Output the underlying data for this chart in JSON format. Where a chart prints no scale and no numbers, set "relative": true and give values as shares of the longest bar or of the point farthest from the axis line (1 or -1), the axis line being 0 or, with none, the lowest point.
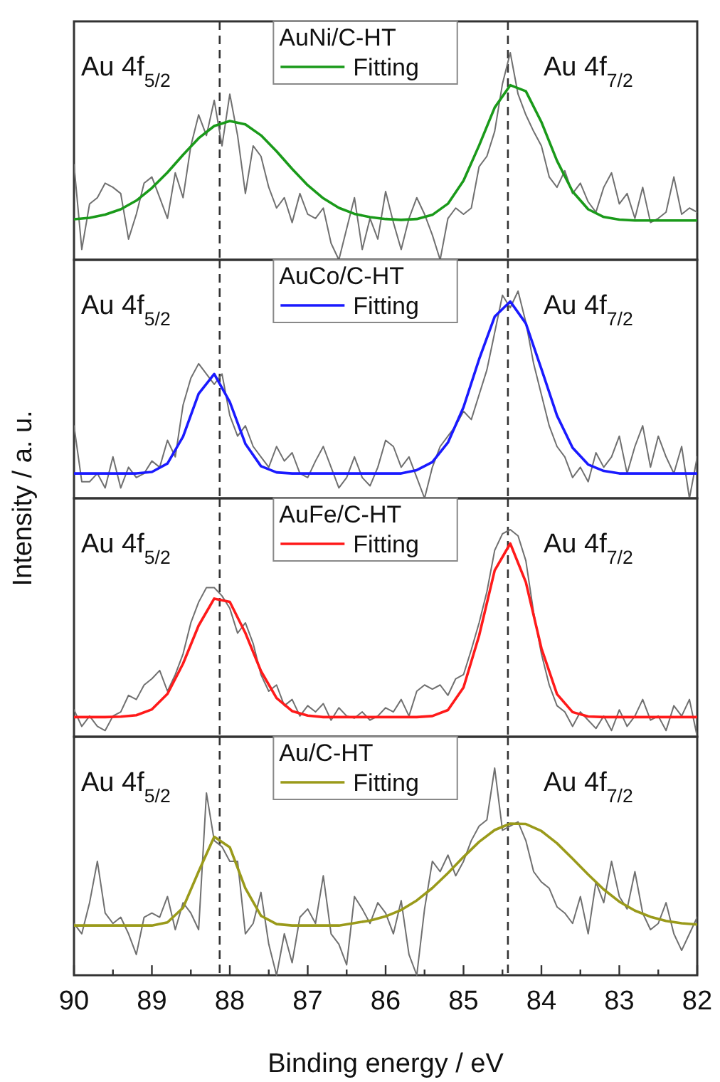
{
  "chart_data": [
    {
      "type": "line",
      "relative": true,
      "ylabel": "Intensity / a. u.",
      "legend_title": "AuNi/C-HT",
      "legend": "top",
      "tick_labels": false,
      "xlim": [
        90,
        82
      ],
      "annotations": [
        "Au 4f$_{5/2}$",
        "Au 4f$_{7/2}$"
      ],
      "ref_lines": [
        {
          "axis": "x",
          "value": 88.13,
          "color": "#333333",
          "line_style": "dashed"
        },
        {
          "axis": "x",
          "value": 84.43,
          "color": "#333333",
          "line_style": "dashed"
        }
      ],
      "x": [
        90,
        89.9,
        89.8,
        89.7,
        89.6,
        89.5,
        89.4,
        89.3,
        89.2,
        89.1,
        89,
        88.9,
        88.8,
        88.7,
        88.6,
        88.5,
        88.4,
        88.3,
        88.2,
        88.1,
        88,
        87.9,
        87.8,
        87.7,
        87.6,
        87.5,
        87.4,
        87.3,
        87.2,
        87.1,
        87,
        86.9,
        86.8,
        86.7,
        86.6,
        86.5,
        86.4,
        86.3,
        86.2,
        86.1,
        86,
        85.9,
        85.8,
        85.7,
        85.6,
        85.5,
        85.4,
        85.3,
        85.2,
        85.1,
        85,
        84.9,
        84.8,
        84.7,
        84.6,
        84.5,
        84.4,
        84.3,
        84.2,
        84.1,
        84,
        83.9,
        83.8,
        83.7,
        83.6,
        83.5,
        83.4,
        83.3,
        83.2,
        83.1,
        83,
        82.9,
        82.8,
        82.7,
        82.6,
        82.5,
        82.4,
        82.3,
        82.2,
        82.1,
        82
      ],
      "series": [
        {
          "color": "#707070",
          "values": [
            0.46,
            0.05,
            0.27,
            0.3,
            0.37,
            0.35,
            0.32,
            0.1,
            0.22,
            0.37,
            0.4,
            0.3,
            0.2,
            0.42,
            0.3,
            0.55,
            0.7,
            0.6,
            0.77,
            0.55,
            0.8,
            0.6,
            0.32,
            0.55,
            0.5,
            0.35,
            0.25,
            0.3,
            0.18,
            0.32,
            0.22,
            0.2,
            0.25,
            0.08,
            0.0,
            0.15,
            0.3,
            0.05,
            0.2,
            0.1,
            0.33,
            0.18,
            0.05,
            0.2,
            0.3,
            0.22,
            0.12,
            0.0,
            0.2,
            0.25,
            0.22,
            0.25,
            0.45,
            0.5,
            0.62,
            0.85,
            1.0,
            0.8,
            0.7,
            0.62,
            0.55,
            0.4,
            0.35,
            0.43,
            0.32,
            0.37,
            0.28,
            0.23,
            0.35,
            0.42,
            0.27,
            0.32,
            0.2,
            0.35,
            0.18,
            0.2,
            0.23,
            0.4,
            0.22,
            0.25,
            0.23
          ]
        },
        {
          "name": "Fitting",
          "color": "#1a9a1a",
          "x": [
            90,
            89.8,
            89.6,
            89.4,
            89.2,
            89,
            88.8,
            88.6,
            88.4,
            88.2,
            88,
            87.8,
            87.6,
            87.4,
            87.2,
            87,
            86.8,
            86.6,
            86.4,
            86.2,
            86,
            85.8,
            85.6,
            85.4,
            85.2,
            85,
            84.8,
            84.6,
            84.4,
            84.2,
            84,
            83.8,
            83.6,
            83.4,
            83.2,
            83,
            82.8,
            82.6,
            82.4,
            82.2,
            82
          ],
          "values": [
            0.196,
            0.203,
            0.218,
            0.244,
            0.286,
            0.347,
            0.422,
            0.507,
            0.587,
            0.646,
            0.67,
            0.654,
            0.601,
            0.524,
            0.439,
            0.36,
            0.297,
            0.251,
            0.222,
            0.206,
            0.197,
            0.193,
            0.197,
            0.217,
            0.271,
            0.382,
            0.552,
            0.735,
            0.843,
            0.814,
            0.665,
            0.478,
            0.33,
            0.244,
            0.207,
            0.194,
            0.19,
            0.19,
            0.19,
            0.19,
            0.19
          ]
        }
      ]
    },
    {
      "type": "line",
      "relative": true,
      "legend_title": "AuCo/C-HT",
      "legend": "top",
      "tick_labels": false,
      "xlim": [
        90,
        82
      ],
      "annotations": [
        "Au 4f$_{5/2}$",
        "Au 4f$_{7/2}$"
      ],
      "ref_lines": [
        {
          "axis": "x",
          "value": 88.13,
          "color": "#333333",
          "line_style": "dashed"
        },
        {
          "axis": "x",
          "value": 84.43,
          "color": "#333333",
          "line_style": "dashed"
        }
      ],
      "x": [
        90,
        89.9,
        89.8,
        89.7,
        89.6,
        89.5,
        89.4,
        89.3,
        89.2,
        89.1,
        89,
        88.9,
        88.8,
        88.7,
        88.6,
        88.5,
        88.4,
        88.3,
        88.2,
        88.1,
        88,
        87.9,
        87.8,
        87.7,
        87.6,
        87.5,
        87.4,
        87.3,
        87.2,
        87.1,
        87,
        86.9,
        86.8,
        86.7,
        86.6,
        86.5,
        86.4,
        86.3,
        86.2,
        86.1,
        86,
        85.9,
        85.8,
        85.7,
        85.6,
        85.5,
        85.4,
        85.3,
        85.2,
        85.1,
        85,
        84.9,
        84.8,
        84.7,
        84.6,
        84.5,
        84.4,
        84.3,
        84.2,
        84.1,
        84,
        83.9,
        83.8,
        83.7,
        83.6,
        83.5,
        83.4,
        83.3,
        83.2,
        83.1,
        83,
        82.9,
        82.8,
        82.7,
        82.6,
        82.5,
        82.4,
        82.3,
        82.2,
        82.1,
        82
      ],
      "series": [
        {
          "color": "#707070",
          "values": [
            0.35,
            0.08,
            0.08,
            0.12,
            0.05,
            0.2,
            0.05,
            0.15,
            0.1,
            0.12,
            0.18,
            0.15,
            0.28,
            0.2,
            0.45,
            0.58,
            0.65,
            0.6,
            0.55,
            0.6,
            0.4,
            0.3,
            0.35,
            0.25,
            0.2,
            0.15,
            0.25,
            0.18,
            0.22,
            0.12,
            0.1,
            0.18,
            0.25,
            0.15,
            0.05,
            0.1,
            0.2,
            0.1,
            0.06,
            0.15,
            0.28,
            0.25,
            0.15,
            0.2,
            0.1,
            0.0,
            0.15,
            0.25,
            0.3,
            0.35,
            0.42,
            0.38,
            0.5,
            0.62,
            0.8,
            0.98,
            0.92,
            1.0,
            0.85,
            0.65,
            0.5,
            0.35,
            0.25,
            0.2,
            0.1,
            0.15,
            0.08,
            0.22,
            0.15,
            0.2,
            0.3,
            0.12,
            0.25,
            0.35,
            0.15,
            0.3,
            0.2,
            0.12,
            0.25,
            0.0,
            0.2
          ]
        },
        {
          "name": "Fitting",
          "color": "#1a1aff",
          "x": [
            90,
            89.8,
            89.6,
            89.4,
            89.2,
            89,
            88.8,
            88.6,
            88.4,
            88.2,
            88,
            87.8,
            87.6,
            87.4,
            87.2,
            87,
            86.8,
            86.6,
            86.4,
            86.2,
            86,
            85.8,
            85.6,
            85.4,
            85.2,
            85,
            84.8,
            84.6,
            84.4,
            84.2,
            84,
            83.8,
            83.6,
            83.4,
            83.2,
            83,
            82.8,
            82.6,
            82.4,
            82.2,
            82
          ],
          "values": [
            0.12,
            0.12,
            0.12,
            0.12,
            0.12,
            0.127,
            0.168,
            0.298,
            0.505,
            0.6,
            0.465,
            0.263,
            0.155,
            0.125,
            0.12,
            0.12,
            0.12,
            0.12,
            0.12,
            0.12,
            0.12,
            0.12,
            0.136,
            0.175,
            0.269,
            0.44,
            0.671,
            0.877,
            0.95,
            0.844,
            0.624,
            0.399,
            0.244,
            0.163,
            0.132,
            0.12,
            0.12,
            0.12,
            0.12,
            0.12,
            0.12
          ]
        }
      ]
    },
    {
      "type": "line",
      "relative": true,
      "legend_title": "AuFe/C-HT",
      "legend": "top",
      "tick_labels": false,
      "xlim": [
        90,
        82
      ],
      "annotations": [
        "Au 4f$_{5/2}$",
        "Au 4f$_{7/2}$"
      ],
      "ref_lines": [
        {
          "axis": "x",
          "value": 88.13,
          "color": "#333333",
          "line_style": "dashed"
        },
        {
          "axis": "x",
          "value": 84.43,
          "color": "#333333",
          "line_style": "dashed"
        }
      ],
      "x": [
        90,
        89.9,
        89.8,
        89.7,
        89.6,
        89.5,
        89.4,
        89.3,
        89.2,
        89.1,
        89,
        88.9,
        88.8,
        88.7,
        88.6,
        88.5,
        88.4,
        88.3,
        88.2,
        88.1,
        88,
        87.9,
        87.8,
        87.7,
        87.6,
        87.5,
        87.4,
        87.3,
        87.2,
        87.1,
        87,
        86.9,
        86.8,
        86.7,
        86.6,
        86.5,
        86.4,
        86.3,
        86.2,
        86.1,
        86,
        85.9,
        85.8,
        85.7,
        85.6,
        85.5,
        85.4,
        85.3,
        85.2,
        85.1,
        85,
        84.9,
        84.8,
        84.7,
        84.6,
        84.5,
        84.4,
        84.3,
        84.2,
        84.1,
        84,
        83.9,
        83.8,
        83.7,
        83.6,
        83.5,
        83.4,
        83.3,
        83.2,
        83.1,
        83,
        82.9,
        82.8,
        82.7,
        82.6,
        82.5,
        82.4,
        82.3,
        82.2,
        82.1,
        82
      ],
      "series": [
        {
          "color": "#707070",
          "values": [
            0.13,
            0.05,
            0.1,
            0.05,
            0.03,
            0.1,
            0.12,
            0.2,
            0.18,
            0.25,
            0.28,
            0.32,
            0.22,
            0.3,
            0.4,
            0.55,
            0.65,
            0.72,
            0.72,
            0.68,
            0.62,
            0.5,
            0.55,
            0.45,
            0.3,
            0.22,
            0.25,
            0.15,
            0.18,
            0.1,
            0.15,
            0.12,
            0.16,
            0.08,
            0.14,
            0.1,
            0.09,
            0.12,
            0.08,
            0.1,
            0.14,
            0.12,
            0.18,
            0.1,
            0.22,
            0.25,
            0.23,
            0.25,
            0.2,
            0.28,
            0.3,
            0.42,
            0.55,
            0.7,
            0.9,
            0.98,
            1.0,
            0.97,
            0.85,
            0.6,
            0.4,
            0.25,
            0.15,
            0.12,
            0.05,
            0.12,
            0.08,
            0.04,
            0.1,
            0.03,
            0.13,
            0.05,
            0.1,
            0.18,
            0.08,
            0.1,
            0.03,
            0.15,
            0.1,
            0.18,
            0.0
          ]
        },
        {
          "name": "Fitting",
          "color": "#ff1a1a",
          "x": [
            90,
            89.8,
            89.6,
            89.4,
            89.2,
            89,
            88.8,
            88.6,
            88.4,
            88.2,
            88,
            87.8,
            87.6,
            87.4,
            87.2,
            87,
            86.8,
            86.6,
            86.4,
            86.2,
            86,
            85.8,
            85.6,
            85.4,
            85.2,
            85,
            84.8,
            84.6,
            84.4,
            84.2,
            84,
            83.8,
            83.6,
            83.4,
            83.2,
            83,
            82.8,
            82.6,
            82.4,
            82.2,
            82
          ],
          "values": [
            0.095,
            0.095,
            0.095,
            0.097,
            0.104,
            0.132,
            0.207,
            0.353,
            0.537,
            0.667,
            0.651,
            0.501,
            0.317,
            0.187,
            0.124,
            0.102,
            0.095,
            0.095,
            0.095,
            0.095,
            0.095,
            0.095,
            0.095,
            0.1,
            0.129,
            0.238,
            0.488,
            0.803,
            0.933,
            0.746,
            0.427,
            0.206,
            0.119,
            0.098,
            0.095,
            0.095,
            0.095,
            0.095,
            0.095,
            0.095,
            0.095
          ]
        }
      ]
    },
    {
      "type": "line",
      "relative": true,
      "xlabel": "Binding energy / eV",
      "legend_title": "Au/C-HT",
      "legend": "top",
      "tick_labels": "x",
      "xlim": [
        90,
        82
      ],
      "xticks": [
        90,
        {
          "value": 89.5,
          "label": null
        },
        89,
        {
          "value": 88.5,
          "label": null
        },
        88,
        {
          "value": 87.5,
          "label": null
        },
        87,
        {
          "value": 86.5,
          "label": null
        },
        86,
        {
          "value": 85.5,
          "label": null
        },
        85,
        {
          "value": 84.5,
          "label": null
        },
        84,
        {
          "value": 83.5,
          "label": null
        },
        83,
        {
          "value": 82.5,
          "label": null
        },
        82
      ],
      "annotations": [
        "Au 4f$_{5/2}$",
        "Au 4f$_{7/2}$"
      ],
      "ref_lines": [
        {
          "axis": "x",
          "value": 88.13,
          "color": "#333333",
          "line_style": "dashed"
        },
        {
          "axis": "x",
          "value": 84.43,
          "color": "#333333",
          "line_style": "dashed"
        }
      ],
      "x": [
        90,
        89.9,
        89.8,
        89.7,
        89.6,
        89.5,
        89.4,
        89.3,
        89.2,
        89.1,
        89,
        88.9,
        88.8,
        88.7,
        88.6,
        88.5,
        88.4,
        88.3,
        88.2,
        88.1,
        88,
        87.9,
        87.8,
        87.7,
        87.6,
        87.5,
        87.4,
        87.3,
        87.2,
        87.1,
        87,
        86.9,
        86.8,
        86.7,
        86.6,
        86.5,
        86.4,
        86.3,
        86.2,
        86.1,
        86,
        85.9,
        85.8,
        85.7,
        85.6,
        85.5,
        85.4,
        85.3,
        85.2,
        85.1,
        85,
        84.9,
        84.8,
        84.7,
        84.6,
        84.5,
        84.4,
        84.3,
        84.2,
        84.1,
        84,
        83.9,
        83.8,
        83.7,
        83.6,
        83.5,
        83.4,
        83.3,
        83.2,
        83.1,
        83,
        82.9,
        82.8,
        82.7,
        82.6,
        82.5,
        82.4,
        82.3,
        82.2,
        82.1,
        82
      ],
      "series": [
        {
          "color": "#707070",
          "values": [
            0.25,
            0.2,
            0.35,
            0.55,
            0.3,
            0.25,
            0.28,
            0.2,
            0.1,
            0.28,
            0.3,
            0.28,
            0.38,
            0.22,
            0.35,
            0.3,
            0.22,
            0.88,
            0.65,
            0.62,
            0.55,
            0.55,
            0.2,
            0.25,
            0.4,
            0.15,
            0.0,
            0.2,
            0.06,
            0.28,
            0.32,
            0.25,
            0.48,
            0.2,
            0.15,
            0.05,
            0.38,
            0.32,
            0.25,
            0.35,
            0.3,
            0.2,
            0.36,
            0.1,
            0.0,
            0.32,
            0.55,
            0.5,
            0.58,
            0.48,
            0.55,
            0.65,
            0.72,
            0.75,
            1.0,
            0.7,
            0.72,
            0.74,
            0.65,
            0.5,
            0.45,
            0.42,
            0.33,
            0.3,
            0.25,
            0.38,
            0.2,
            0.45,
            0.35,
            0.55,
            0.38,
            0.32,
            0.5,
            0.3,
            0.22,
            0.25,
            0.35,
            0.2,
            0.12,
            0.2,
            0.28
          ]
        },
        {
          "name": "Fitting",
          "color": "#9a9a1a",
          "x": [
            90,
            89.8,
            89.6,
            89.4,
            89.2,
            89,
            88.8,
            88.6,
            88.4,
            88.2,
            88,
            87.8,
            87.6,
            87.4,
            87.2,
            87,
            86.8,
            86.6,
            86.4,
            86.2,
            86,
            85.8,
            85.6,
            85.4,
            85.2,
            85,
            84.8,
            84.6,
            84.4,
            84.2,
            84,
            83.8,
            83.6,
            83.4,
            83.2,
            83,
            82.8,
            82.6,
            82.4,
            82.2,
            82
          ],
          "values": [
            0.24,
            0.24,
            0.24,
            0.24,
            0.24,
            0.24,
            0.255,
            0.326,
            0.501,
            0.668,
            0.618,
            0.42,
            0.287,
            0.247,
            0.24,
            0.24,
            0.24,
            0.24,
            0.252,
            0.264,
            0.284,
            0.315,
            0.361,
            0.421,
            0.493,
            0.571,
            0.644,
            0.701,
            0.732,
            0.73,
            0.696,
            0.637,
            0.563,
            0.486,
            0.414,
            0.355,
            0.312,
            0.282,
            0.262,
            0.251,
            0.245
          ]
        }
      ]
    }
  ]
}
